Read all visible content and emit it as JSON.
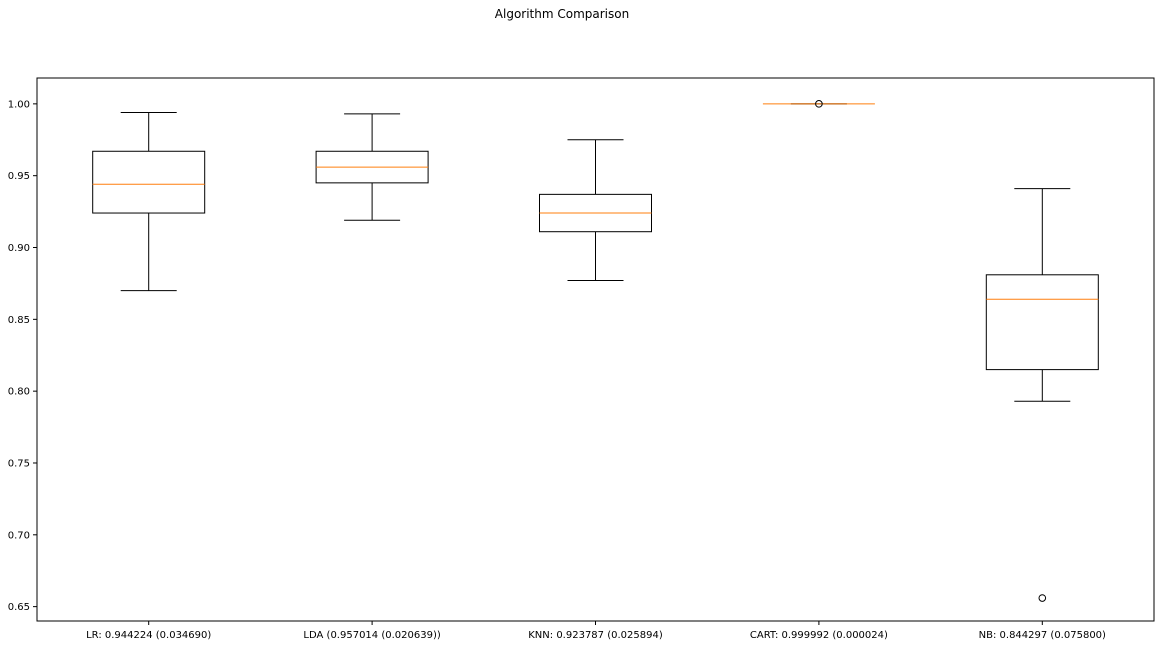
{
  "chart_data": {
    "type": "boxplot",
    "title": "Algorithm Comparison",
    "xlabel": "",
    "ylabel": "",
    "ylim": [
      0.64,
      1.018
    ],
    "yticks": [
      0.65,
      0.7,
      0.75,
      0.8,
      0.85,
      0.9,
      0.95,
      1.0
    ],
    "ytick_labels": [
      "0.65",
      "0.70",
      "0.75",
      "0.80",
      "0.85",
      "0.90",
      "0.95",
      "1.00"
    ],
    "grid": false,
    "categories": [
      "LR: 0.944224 (0.034690)",
      "LDA (0.957014 (0.020639))",
      "KNN: 0.923787 (0.025894)",
      "CART: 0.999992 (0.000024)",
      "NB: 0.844297 (0.075800)"
    ],
    "boxes": [
      {
        "whisker_low": 0.87,
        "q1": 0.924,
        "median": 0.944,
        "q3": 0.967,
        "whisker_high": 0.994,
        "outliers": []
      },
      {
        "whisker_low": 0.919,
        "q1": 0.945,
        "median": 0.956,
        "q3": 0.967,
        "whisker_high": 0.993,
        "outliers": []
      },
      {
        "whisker_low": 0.877,
        "q1": 0.911,
        "median": 0.924,
        "q3": 0.937,
        "whisker_high": 0.975,
        "outliers": []
      },
      {
        "whisker_low": 1.0,
        "q1": 1.0,
        "median": 1.0,
        "q3": 1.0,
        "whisker_high": 1.0,
        "outliers": [
          1.0
        ]
      },
      {
        "whisker_low": 0.793,
        "q1": 0.815,
        "median": 0.864,
        "q3": 0.881,
        "whisker_high": 0.941,
        "outliers": [
          0.656
        ]
      }
    ],
    "colors": {
      "box": "#000000",
      "median": "#ff7f0e",
      "background": "#ffffff"
    }
  }
}
